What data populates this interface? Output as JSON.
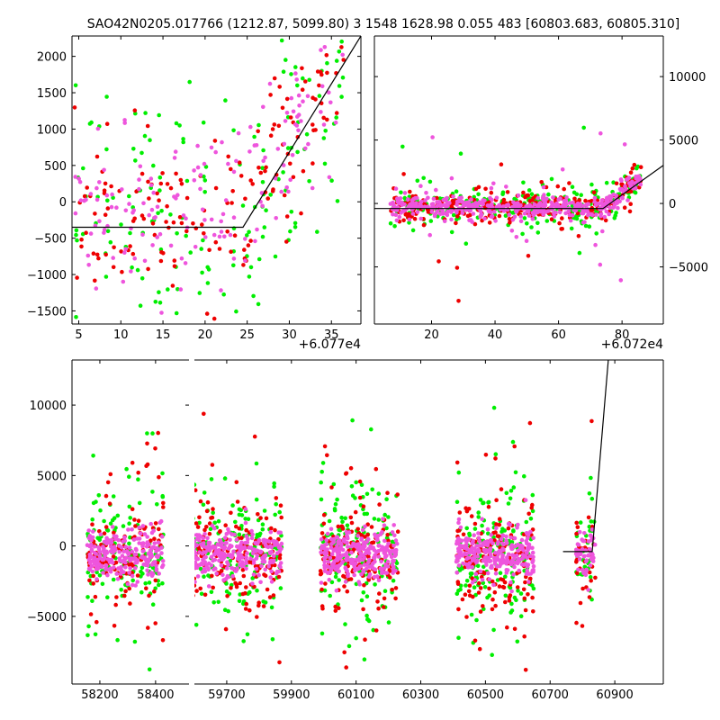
{
  "title": "SAO42N0205.017766 (1212.87, 5099.80)   3 1548 1628.98 0.055 483 [60803.683, 60805.310]",
  "colors": {
    "green": "#00ee00",
    "red": "#ee0000",
    "magenta": "#ee55dd",
    "line": "#000000"
  },
  "chart_data": [
    {
      "id": "top-left",
      "type": "scatter",
      "offset_label": "+6.077e4",
      "xlim": [
        4.2,
        38.5
      ],
      "ylim": [
        -1680,
        2280
      ],
      "xticks": [
        5,
        10,
        15,
        20,
        25,
        30,
        35
      ],
      "yticks": [
        -1500,
        -1000,
        -500,
        0,
        500,
        1000,
        1500,
        2000
      ],
      "ytick_side": "left",
      "x_extent": [
        4.5,
        36.5
      ],
      "model_line": {
        "x": [
          4.2,
          24.5,
          38.5
        ],
        "y": [
          -350,
          -350,
          2280
        ]
      },
      "series": [
        {
          "name": "green",
          "color": "#00ee00"
        },
        {
          "name": "red",
          "color": "#ee0000"
        },
        {
          "name": "magenta",
          "color": "#ee55dd"
        }
      ]
    },
    {
      "id": "top-right",
      "type": "scatter",
      "offset_label": "+6.072e4",
      "xlim": [
        2,
        93
      ],
      "ylim": [
        -9500,
        13200
      ],
      "xticks": [
        20,
        40,
        60,
        80
      ],
      "yticks": [
        -5000,
        0,
        5000,
        10000
      ],
      "ytick_side": "right",
      "x_extent": [
        7,
        86
      ],
      "model_line": {
        "x": [
          0,
          74,
          93
        ],
        "y": [
          -400,
          -400,
          3000
        ]
      },
      "series": [
        {
          "name": "green",
          "color": "#00ee00"
        },
        {
          "name": "red",
          "color": "#ee0000"
        },
        {
          "name": "magenta",
          "color": "#ee55dd"
        }
      ]
    },
    {
      "id": "bottom",
      "type": "scatter",
      "broken_axis": true,
      "ylim": [
        -9800,
        13200
      ],
      "yticks": [
        -5000,
        0,
        5000,
        10000
      ],
      "ytick_side": "left",
      "segments": [
        {
          "xlim": [
            58100,
            58520
          ],
          "xticks": [
            58200,
            58400
          ],
          "data_range": [
            58155,
            58430
          ]
        },
        {
          "xlim": [
            59600,
            61050
          ],
          "xticks": [
            59700,
            59900,
            60100,
            60300,
            60500,
            60700,
            60900
          ],
          "groups": [
            [
              59595,
              59870
            ],
            [
              59990,
              60230
            ],
            [
              60410,
              60650
            ],
            [
              60780,
              60840
            ]
          ]
        }
      ],
      "model_line": {
        "x": [
          60740,
          60830,
          60880
        ],
        "y": [
          -400,
          -400,
          13200
        ]
      },
      "series": [
        {
          "name": "green",
          "color": "#00ee00"
        },
        {
          "name": "red",
          "color": "#ee0000"
        },
        {
          "name": "magenta",
          "color": "#ee55dd"
        }
      ]
    }
  ]
}
